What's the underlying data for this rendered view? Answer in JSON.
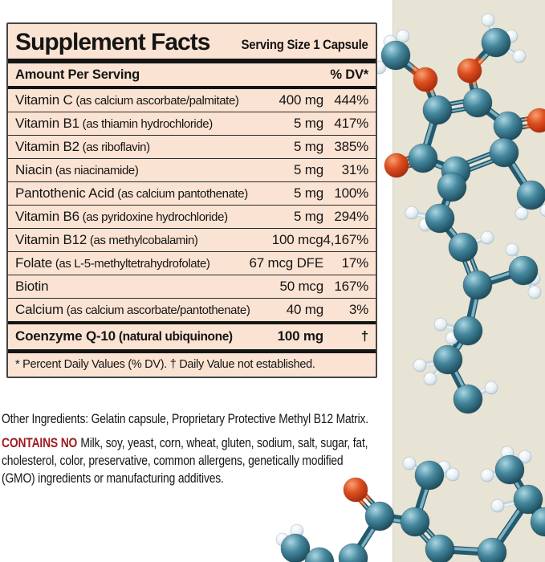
{
  "label": {
    "title": "Supplement Facts",
    "serving_size": "Serving Size 1 Capsule",
    "column_header_left": "Amount Per Serving",
    "column_header_right": "% DV*",
    "rows": [
      {
        "name": "Vitamin C",
        "detail": "(as calcium ascorbate/palmitate)",
        "amount": "400 mg",
        "dv": "444%"
      },
      {
        "name": "Vitamin B1",
        "detail": "(as thiamin hydrochloride)",
        "amount": "5 mg",
        "dv": "417%"
      },
      {
        "name": "Vitamin B2",
        "detail": "(as riboflavin)",
        "amount": "5 mg",
        "dv": "385%"
      },
      {
        "name": "Niacin",
        "detail": "(as niacinamide)",
        "amount": "5 mg",
        "dv": "31%"
      },
      {
        "name": "Pantothenic Acid",
        "detail": "(as calcium pantothenate)",
        "amount": "5 mg",
        "dv": "100%"
      },
      {
        "name": "Vitamin B6",
        "detail": "(as pyridoxine hydrochloride)",
        "amount": "5 mg",
        "dv": "294%"
      },
      {
        "name": "Vitamin B12",
        "detail": "(as methylcobalamin)",
        "amount": "100 mcg",
        "dv": "4,167%"
      },
      {
        "name": "Folate",
        "detail": "(as L-5-methyltetrahydrofolate)",
        "amount": "67 mcg DFE",
        "dv": "17%"
      },
      {
        "name": "Biotin",
        "detail": "",
        "amount": "50 mcg",
        "dv": "167%"
      },
      {
        "name": "Calcium",
        "detail": "(as calcium ascorbate/pantothenate)",
        "amount": "40 mg",
        "dv": "3%"
      }
    ],
    "highlight_row": {
      "name": "Coenzyme Q-10",
      "detail": "(natural ubiquinone)",
      "amount": "100 mg",
      "dv": "†"
    },
    "footnote": "* Percent Daily Values (% DV). † Daily Value not established."
  },
  "other_ingredients": "Other Ingredients: Gelatin capsule, Proprietary Protective Methyl B12 Matrix.",
  "contains_no": {
    "label": "CONTAINS NO",
    "text": "Milk, soy, yeast, corn, wheat, gluten, sodium, salt, sugar, fat, cholesterol, color, preservative, common allergens, genetically modified (GMO) ingredients or manufacturing additives."
  },
  "colors": {
    "label_bg": "#fbe3d3",
    "rule": "#141414",
    "contains_no_red": "#9d1b1f",
    "panel_bg": "#e7e4d5",
    "carbon": "#2e6b80",
    "oxygen": "#d84315",
    "hydrogen": "#e9f1f6",
    "bond_teal": "#235a6e",
    "bond_red": "#c2451c"
  },
  "molecule": {
    "atoms": [
      [
        "H",
        608,
        25
      ],
      [
        "H",
        637,
        45
      ],
      [
        "H",
        647,
        70
      ],
      [
        "C",
        618,
        53
      ],
      [
        "O",
        585,
        88
      ],
      [
        "H",
        502,
        45
      ],
      [
        "H",
        486,
        52
      ],
      [
        "H",
        473,
        84
      ],
      [
        "C",
        493,
        69
      ],
      [
        "O",
        530,
        99
      ],
      [
        "C",
        545,
        137
      ],
      [
        "C",
        595,
        128
      ],
      [
        "C",
        633,
        157
      ],
      [
        "O",
        672,
        150
      ],
      [
        "C",
        628,
        190
      ],
      [
        "C",
        568,
        213
      ],
      [
        "C",
        527,
        197
      ],
      [
        "O",
        494,
        206
      ],
      [
        "C",
        662,
        243
      ],
      [
        "H",
        681,
        262
      ],
      [
        "H",
        650,
        266
      ],
      [
        "C",
        563,
        233
      ],
      [
        "C",
        548,
        272
      ],
      [
        "H",
        513,
        265
      ],
      [
        "H",
        530,
        280
      ],
      [
        "C",
        577,
        308
      ],
      [
        "H",
        607,
        296
      ],
      [
        "C",
        595,
        355
      ],
      [
        "C",
        652,
        337
      ],
      [
        "H",
        638,
        311
      ],
      [
        "H",
        665,
        347
      ],
      [
        "H",
        666,
        364
      ],
      [
        "C",
        583,
        412
      ],
      [
        "H",
        549,
        404
      ],
      [
        "H",
        563,
        421
      ],
      [
        "C",
        558,
        448
      ],
      [
        "H",
        523,
        455
      ],
      [
        "H",
        536,
        472
      ],
      [
        "C",
        583,
        497
      ],
      [
        "H",
        612,
        483
      ],
      [
        "H",
        510,
        577
      ],
      [
        "H",
        553,
        582
      ],
      [
        "H",
        564,
        591
      ],
      [
        "C",
        535,
        592
      ],
      [
        "C",
        517,
        650
      ],
      [
        "C",
        473,
        643
      ],
      [
        "O",
        443,
        610
      ],
      [
        "C",
        440,
        695
      ],
      [
        "C",
        548,
        684
      ],
      [
        "C",
        613,
        688
      ],
      [
        "C",
        658,
        622
      ],
      [
        "C",
        635,
        585
      ],
      [
        "H",
        632,
        564
      ],
      [
        "H",
        654,
        569
      ],
      [
        "H",
        607,
        592
      ],
      [
        "H",
        620,
        630
      ],
      [
        "C",
        679,
        650
      ],
      [
        "H",
        370,
        661
      ],
      [
        "H",
        352,
        672
      ],
      [
        "C",
        368,
        683
      ],
      [
        "C",
        398,
        700
      ]
    ],
    "bonds": [
      [
        0,
        3
      ],
      [
        1,
        3
      ],
      [
        2,
        3
      ],
      [
        3,
        4
      ],
      [
        4,
        11
      ],
      [
        5,
        8
      ],
      [
        6,
        8
      ],
      [
        7,
        8
      ],
      [
        8,
        9
      ],
      [
        9,
        10
      ],
      [
        10,
        11,
        2
      ],
      [
        11,
        12
      ],
      [
        12,
        14
      ],
      [
        14,
        15,
        2
      ],
      [
        15,
        16
      ],
      [
        16,
        10
      ],
      [
        12,
        13,
        2
      ],
      [
        16,
        17,
        2
      ],
      [
        14,
        18
      ],
      [
        18,
        19
      ],
      [
        18,
        20
      ],
      [
        15,
        21
      ],
      [
        21,
        22
      ],
      [
        22,
        23
      ],
      [
        22,
        24
      ],
      [
        22,
        25
      ],
      [
        25,
        26
      ],
      [
        25,
        27,
        2
      ],
      [
        27,
        28
      ],
      [
        28,
        29
      ],
      [
        28,
        30
      ],
      [
        28,
        31
      ],
      [
        27,
        32
      ],
      [
        32,
        33
      ],
      [
        32,
        34
      ],
      [
        32,
        35
      ],
      [
        35,
        36
      ],
      [
        35,
        37
      ],
      [
        35,
        38
      ],
      [
        38,
        39
      ],
      [
        43,
        40
      ],
      [
        43,
        41
      ],
      [
        43,
        42
      ],
      [
        43,
        44
      ],
      [
        44,
        45
      ],
      [
        45,
        46,
        2
      ],
      [
        45,
        47
      ],
      [
        44,
        48,
        2
      ],
      [
        48,
        49
      ],
      [
        49,
        50
      ],
      [
        50,
        51
      ],
      [
        51,
        52
      ],
      [
        51,
        53
      ],
      [
        51,
        54
      ],
      [
        50,
        55
      ],
      [
        50,
        56,
        2
      ],
      [
        59,
        57
      ],
      [
        59,
        58
      ],
      [
        59,
        60
      ]
    ]
  }
}
